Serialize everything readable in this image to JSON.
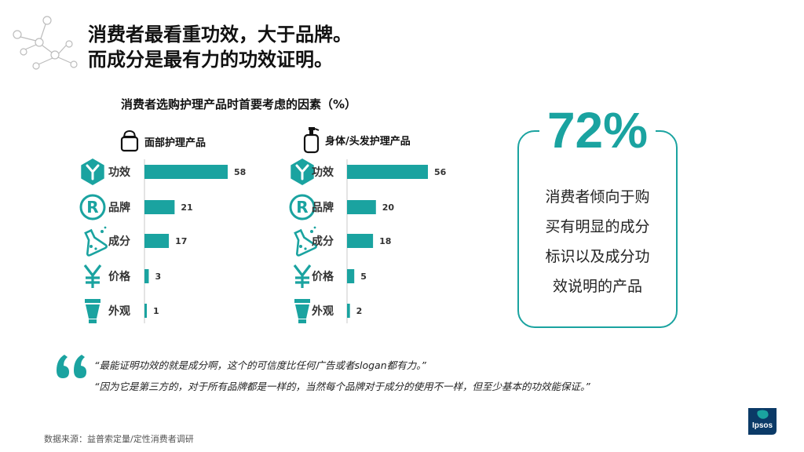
{
  "title": {
    "line1": "消费者最看重功效，大于品牌。",
    "line2": "而成分是最有力的功效证明。"
  },
  "chart_title": "消费者选购护理产品时首要考虑的因素（%）",
  "colors": {
    "accent": "#1aa3a0",
    "text": "#1a1a1a"
  },
  "chart_data": [
    {
      "type": "bar",
      "orientation": "horizontal",
      "title": "面部护理产品",
      "categories": [
        "功效",
        "品牌",
        "成分",
        "价格",
        "外观"
      ],
      "icons": [
        "y-hexagon-icon",
        "registered-icon",
        "flask-icon",
        "yen-icon",
        "tube-icon"
      ],
      "values": [
        58,
        21,
        17,
        3,
        1
      ]
    },
    {
      "type": "bar",
      "orientation": "horizontal",
      "title": "身体/头发护理产品",
      "categories": [
        "功效",
        "品牌",
        "成分",
        "价格",
        "外观"
      ],
      "icons": [
        "y-hexagon-icon",
        "registered-icon",
        "flask-icon",
        "yen-icon",
        "tube-icon"
      ],
      "values": [
        56,
        20,
        18,
        5,
        2
      ]
    }
  ],
  "stat": {
    "value": "72%",
    "lines": [
      "消费者倾向于购",
      "买有明显的成分",
      "标识以及成分功",
      "效说明的产品"
    ]
  },
  "quotes": [
    "“最能证明功效的就是成分啊，这个的可信度比任何广告或者slogan都有力。”",
    "“因为它是第三方的，对于所有品牌都是一样的，当然每个品牌对于成分的使用不一样，但至少基本的功效能保证。”"
  ],
  "source": "数据来源：益普索定量/定性消费者调研",
  "logo": {
    "text": "Ipsos",
    "icon": "ipsos-logo"
  }
}
